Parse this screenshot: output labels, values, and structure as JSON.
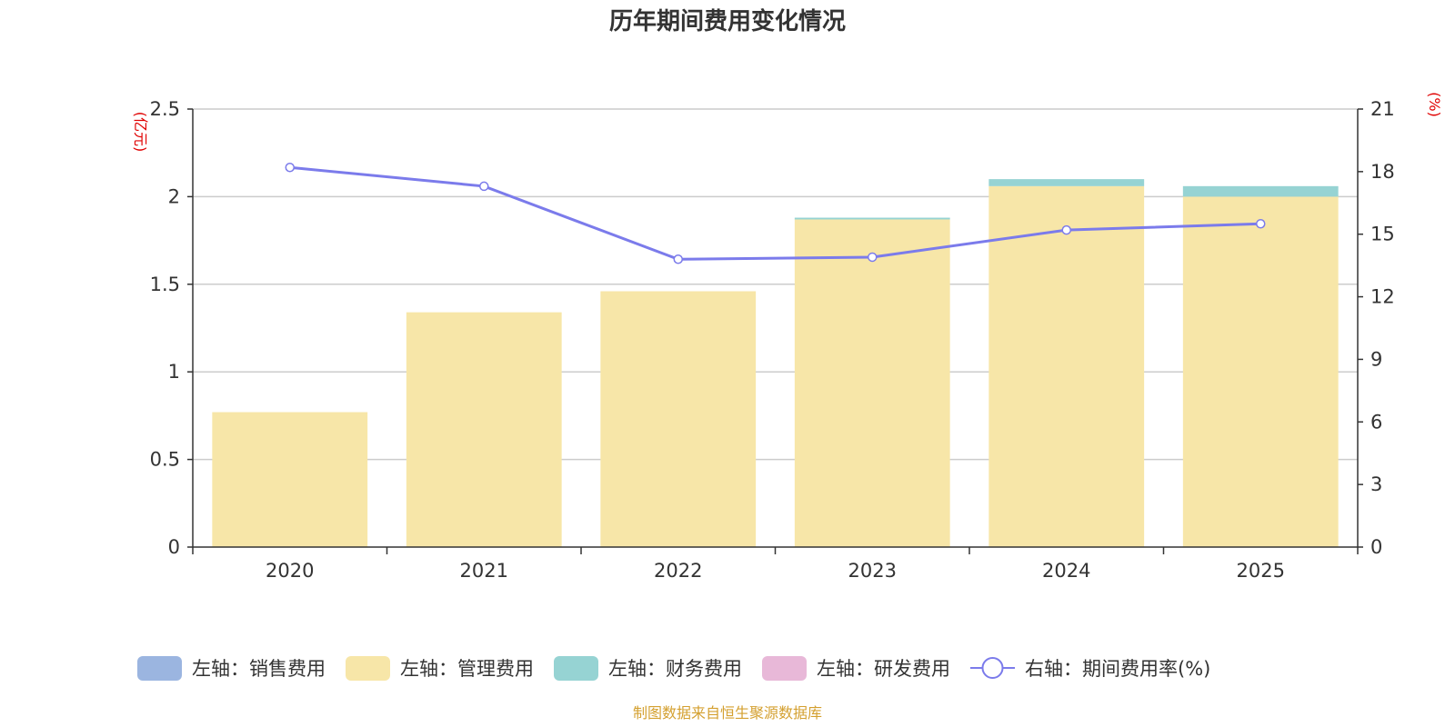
{
  "chart_data": {
    "type": "bar",
    "title": "历年期间费用变化情况",
    "categories": [
      "2020",
      "2021",
      "2022",
      "2023",
      "2024",
      "2025"
    ],
    "left_axis": {
      "unit": "(亿元)",
      "min": 0,
      "max": 2.5,
      "ticks": [
        0,
        0.5,
        1,
        1.5,
        2,
        2.5
      ],
      "tick_labels": [
        "0",
        "0.5",
        "1",
        "1.5",
        "2",
        "2.5"
      ]
    },
    "right_axis": {
      "unit": "(%)",
      "min": 0,
      "max": 21,
      "ticks": [
        0,
        3,
        6,
        9,
        12,
        15,
        18,
        21
      ],
      "tick_labels": [
        "0",
        "3",
        "6",
        "9",
        "12",
        "15",
        "18",
        "21"
      ]
    },
    "stacked_series": [
      {
        "name": "左轴：销售费用",
        "color": "#9BB5E0",
        "values": [
          0,
          0,
          0,
          0,
          0,
          0
        ]
      },
      {
        "name": "左轴：管理费用",
        "color": "#F7E6A8",
        "values": [
          0.77,
          1.34,
          1.46,
          1.87,
          2.06,
          2.0
        ]
      },
      {
        "name": "左轴：财务费用",
        "color": "#96D3D3",
        "values": [
          0,
          0,
          0,
          0.01,
          0.04,
          0.06
        ]
      },
      {
        "name": "左轴：研发费用",
        "color": "#E8B8D8",
        "values": [
          0,
          0,
          0,
          0,
          0,
          0
        ]
      }
    ],
    "line_series": {
      "name": "右轴：期间费用率(%)",
      "color": "#7B7BEB",
      "values": [
        18.2,
        17.3,
        13.8,
        13.9,
        15.2,
        15.5
      ]
    },
    "colors": {
      "unit_label": "#E00000",
      "source": "#D4A030",
      "axis": "#333333",
      "grid": "#CCCCCC"
    },
    "source_text": "制图数据来自恒生聚源数据库"
  }
}
